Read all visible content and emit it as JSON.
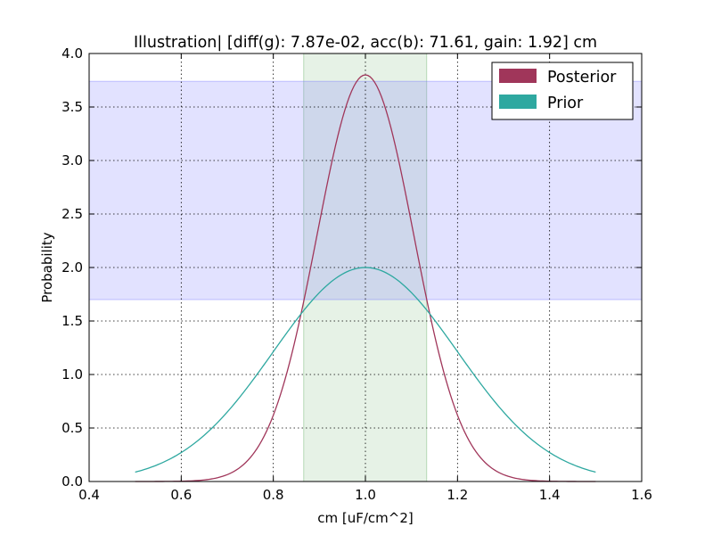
{
  "chart_data": {
    "type": "line",
    "title": "Illustration|  [diff(g): 7.87e-02, acc(b): 71.61, gain: 1.92] cm",
    "xlabel": "cm [uF/cm^2]",
    "ylabel": "Probability",
    "xlim": [
      0.4,
      1.6
    ],
    "ylim": [
      0.0,
      4.0
    ],
    "xticks": [
      "0.4",
      "0.6",
      "0.8",
      "1.0",
      "1.2",
      "1.4",
      "1.6"
    ],
    "yticks": [
      "0.0",
      "0.5",
      "1.0",
      "1.5",
      "2.0",
      "2.5",
      "3.0",
      "3.5",
      "4.0"
    ],
    "grid": true,
    "legend_position": "top-right",
    "x_range_sampled": [
      0.5,
      1.5
    ],
    "series": [
      {
        "name": "Posterior",
        "color": "#a0365a",
        "distribution": "gaussian",
        "mean": 1.0,
        "std": 0.105,
        "peak": 3.8
      },
      {
        "name": "Prior",
        "color": "#2ea8a0",
        "distribution": "gaussian",
        "mean": 1.0,
        "std": 0.2,
        "peak": 2.0
      }
    ],
    "shaded_regions": [
      {
        "orientation": "vertical",
        "x": [
          0.866,
          1.133
        ],
        "color": "#8fc48f",
        "opacity": 0.22
      },
      {
        "orientation": "horizontal",
        "y": [
          1.7,
          3.74
        ],
        "color": "#7070ff",
        "opacity": 0.2
      }
    ]
  }
}
